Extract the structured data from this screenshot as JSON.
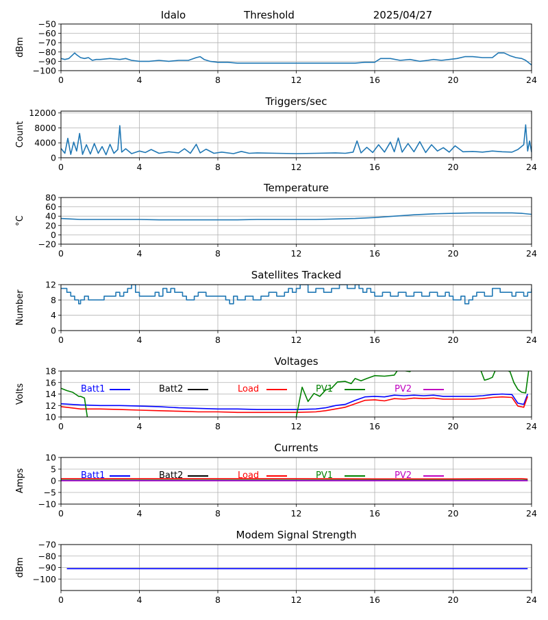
{
  "header": {
    "station": "Idalo",
    "label": "Threshold",
    "date": "2025/04/27"
  },
  "chart_data": [
    {
      "id": "threshold",
      "type": "line",
      "title": "",
      "ylabel": "dBm",
      "xlim": [
        0,
        24
      ],
      "ylim": [
        -100,
        -50
      ],
      "xticks": [
        0,
        4,
        8,
        12,
        16,
        20,
        24
      ],
      "yticks": [
        -100,
        -90,
        -80,
        -70,
        -60,
        -50
      ],
      "grid": true,
      "series": [
        {
          "color": "#1f77b4",
          "x": [
            0,
            0.2,
            0.4,
            0.6,
            0.7,
            0.8,
            1.0,
            1.2,
            1.4,
            1.6,
            1.8,
            2.0,
            2.5,
            3.0,
            3.3,
            3.6,
            4.0,
            4.5,
            5.0,
            5.5,
            6.0,
            6.5,
            6.9,
            7.1,
            7.3,
            7.6,
            8.0,
            8.5,
            9.0,
            10,
            11,
            12,
            13,
            14,
            15,
            15.5,
            16.0,
            16.3,
            16.8,
            17.3,
            17.8,
            18.3,
            18.7,
            19.0,
            19.4,
            19.8,
            20.2,
            20.6,
            21.0,
            21.5,
            22.0,
            22.3,
            22.6,
            22.9,
            23.2,
            23.5,
            23.7,
            24.0
          ],
          "y": [
            -87,
            -88,
            -87,
            -83,
            -81,
            -83,
            -86,
            -87,
            -86,
            -89,
            -88,
            -88,
            -87,
            -88,
            -87,
            -89,
            -90,
            -90,
            -89,
            -90,
            -89,
            -89,
            -86,
            -85,
            -88,
            -90,
            -91,
            -91,
            -92,
            -92,
            -92,
            -92,
            -92,
            -92,
            -92,
            -91,
            -91,
            -87,
            -87,
            -89,
            -88,
            -90,
            -89,
            -88,
            -89,
            -88,
            -87,
            -85,
            -85,
            -86,
            -86,
            -81,
            -81,
            -84,
            -86,
            -87,
            -89,
            -94
          ]
        }
      ]
    },
    {
      "id": "triggers",
      "type": "line",
      "title": "Triggers/sec",
      "ylabel": "Count",
      "xlim": [
        0,
        24
      ],
      "ylim": [
        0,
        12500
      ],
      "xticks": [
        0,
        4,
        8,
        12,
        16,
        20,
        24
      ],
      "yticks": [
        0,
        4000,
        8000,
        12000
      ],
      "grid": true,
      "series": [
        {
          "color": "#1f77b4",
          "x": [
            0,
            0.2,
            0.35,
            0.5,
            0.65,
            0.8,
            0.95,
            1.1,
            1.3,
            1.5,
            1.7,
            1.9,
            2.1,
            2.3,
            2.5,
            2.7,
            2.9,
            3.0,
            3.1,
            3.3,
            3.6,
            4.0,
            4.3,
            4.6,
            5.0,
            5.5,
            6.0,
            6.3,
            6.6,
            6.9,
            7.1,
            7.4,
            7.8,
            8.2,
            8.8,
            9.2,
            9.6,
            10,
            11,
            12,
            13,
            14,
            14.5,
            14.9,
            15.1,
            15.3,
            15.6,
            15.9,
            16.2,
            16.5,
            16.8,
            17.0,
            17.2,
            17.4,
            17.7,
            18.0,
            18.3,
            18.6,
            18.9,
            19.2,
            19.5,
            19.8,
            20.1,
            20.5,
            21.0,
            21.5,
            22.0,
            22.5,
            23.0,
            23.3,
            23.6,
            23.7,
            23.8,
            23.9,
            24.0
          ],
          "y": [
            2500,
            1200,
            5200,
            900,
            4200,
            1800,
            6500,
            900,
            3500,
            1000,
            3800,
            1200,
            3000,
            800,
            3600,
            1200,
            2200,
            8600,
            1500,
            2400,
            1100,
            1800,
            1400,
            2200,
            1200,
            1600,
            1300,
            2400,
            1200,
            3600,
            1300,
            2300,
            1200,
            1500,
            1100,
            1700,
            1200,
            1300,
            1200,
            1100,
            1200,
            1300,
            1200,
            1500,
            4500,
            1300,
            2800,
            1400,
            3500,
            1500,
            4200,
            1600,
            5300,
            1500,
            3800,
            1600,
            4300,
            1400,
            3500,
            1800,
            2700,
            1500,
            3200,
            1600,
            1700,
            1500,
            1800,
            1600,
            1500,
            2200,
            3500,
            8800,
            1800,
            4500,
            1500
          ]
        }
      ]
    },
    {
      "id": "temperature",
      "type": "line",
      "title": "Temperature",
      "ylabel": "°C",
      "xlim": [
        0,
        24
      ],
      "ylim": [
        -20,
        80
      ],
      "xticks": [
        0,
        4,
        8,
        12,
        16,
        20,
        24
      ],
      "yticks": [
        -20,
        0,
        20,
        40,
        60,
        80
      ],
      "grid": true,
      "series": [
        {
          "color": "#1f77b4",
          "x": [
            0,
            0.5,
            1,
            2,
            3,
            4,
            5,
            6,
            7,
            8,
            9,
            10,
            11,
            12,
            13,
            14,
            15,
            16,
            17,
            18,
            19,
            20,
            21,
            22,
            23,
            23.5,
            24
          ],
          "y": [
            35,
            34,
            33,
            33,
            33,
            33,
            32,
            32,
            32,
            32,
            32,
            33,
            33,
            33,
            33,
            34,
            35,
            37,
            40,
            43,
            45,
            46,
            47,
            47,
            47,
            46,
            44
          ]
        }
      ]
    },
    {
      "id": "satellites",
      "type": "line",
      "title": "Satellites Tracked",
      "ylabel": "Number",
      "xlim": [
        0,
        24
      ],
      "ylim": [
        0,
        12
      ],
      "xticks": [
        0,
        4,
        8,
        12,
        16,
        20,
        24
      ],
      "yticks": [
        0,
        4,
        8,
        12
      ],
      "grid": true,
      "series": [
        {
          "color": "#1f77b4",
          "step": true,
          "x": [
            0,
            0.3,
            0.5,
            0.7,
            0.9,
            1.0,
            1.2,
            1.4,
            1.8,
            2.2,
            2.6,
            2.8,
            3.0,
            3.2,
            3.4,
            3.6,
            3.8,
            4.0,
            4.4,
            4.8,
            5.0,
            5.2,
            5.4,
            5.6,
            5.8,
            6.2,
            6.4,
            6.8,
            7.0,
            7.4,
            7.8,
            8.0,
            8.4,
            8.6,
            8.8,
            9.0,
            9.4,
            9.8,
            10.2,
            10.6,
            11.0,
            11.4,
            11.6,
            11.8,
            12.0,
            12.2,
            12.6,
            13.0,
            13.4,
            13.8,
            14.2,
            14.6,
            15.0,
            15.2,
            15.4,
            15.6,
            15.8,
            16.0,
            16.4,
            16.8,
            17.2,
            17.6,
            18.0,
            18.4,
            18.8,
            19.2,
            19.6,
            19.8,
            20.0,
            20.4,
            20.6,
            20.8,
            21.0,
            21.2,
            21.6,
            22.0,
            22.4,
            22.8,
            23.0,
            23.2,
            23.6,
            23.8,
            24.0
          ],
          "y": [
            11,
            10,
            9,
            8,
            7,
            8,
            9,
            8,
            8,
            9,
            9,
            10,
            9,
            10,
            11,
            12,
            10,
            9,
            9,
            10,
            9,
            11,
            10,
            11,
            10,
            9,
            8,
            9,
            10,
            9,
            9,
            9,
            8,
            7,
            9,
            8,
            9,
            8,
            9,
            10,
            9,
            10,
            11,
            10,
            11,
            12,
            10,
            11,
            10,
            11,
            12,
            11,
            12,
            11,
            10,
            11,
            10,
            9,
            10,
            9,
            10,
            9,
            10,
            9,
            10,
            9,
            10,
            9,
            8,
            9,
            7,
            8,
            9,
            10,
            9,
            11,
            10,
            10,
            9,
            10,
            9,
            10,
            11
          ]
        }
      ]
    },
    {
      "id": "voltages",
      "type": "line",
      "title": "Voltages",
      "ylabel": "Volts",
      "xlim": [
        0,
        24
      ],
      "ylim": [
        10,
        18
      ],
      "xticks": [
        0,
        4,
        8,
        12,
        16,
        20,
        24
      ],
      "yticks": [
        10,
        12,
        14,
        16,
        18
      ],
      "grid": true,
      "legend": [
        "Batt1",
        "Batt2",
        "Load",
        "PV1",
        "PV2"
      ],
      "series": [
        {
          "name": "Batt1",
          "color": "#0000ff",
          "x": [
            0,
            0.5,
            1,
            2,
            3,
            4,
            5,
            6,
            7,
            8,
            9,
            10,
            11,
            12,
            13,
            13.5,
            14,
            14.5,
            15,
            15.5,
            16,
            16.5,
            17,
            17.5,
            18,
            18.5,
            19,
            19.5,
            20,
            20.5,
            21,
            21.5,
            22,
            22.5,
            23,
            23.3,
            23.6,
            23.8
          ],
          "y": [
            12.3,
            12.2,
            12.1,
            12.0,
            12.0,
            11.9,
            11.8,
            11.6,
            11.5,
            11.4,
            11.4,
            11.3,
            11.3,
            11.3,
            11.4,
            11.6,
            12.0,
            12.2,
            12.9,
            13.5,
            13.6,
            13.5,
            13.8,
            13.7,
            13.8,
            13.7,
            13.8,
            13.6,
            13.6,
            13.6,
            13.6,
            13.7,
            13.9,
            14.0,
            13.9,
            12.4,
            12.2,
            14.0
          ]
        },
        {
          "name": "Batt2",
          "color": "#000000",
          "x": [],
          "y": []
        },
        {
          "name": "Load",
          "color": "#ff0000",
          "x": [
            0,
            0.5,
            1,
            2,
            3,
            4,
            5,
            6,
            7,
            8,
            9,
            10,
            11,
            12,
            13,
            13.5,
            14,
            14.5,
            15,
            15.5,
            16,
            16.5,
            17,
            17.5,
            18,
            18.5,
            19,
            19.5,
            20,
            20.5,
            21,
            21.5,
            22,
            22.5,
            23,
            23.3,
            23.6,
            23.8
          ],
          "y": [
            11.8,
            11.6,
            11.4,
            11.4,
            11.3,
            11.2,
            11.1,
            11.0,
            10.9,
            10.9,
            10.8,
            10.8,
            10.8,
            10.8,
            10.9,
            11.1,
            11.4,
            11.7,
            12.3,
            12.9,
            13.0,
            12.8,
            13.2,
            13.1,
            13.3,
            13.2,
            13.3,
            13.1,
            13.1,
            13.1,
            13.1,
            13.2,
            13.4,
            13.5,
            13.4,
            11.9,
            11.7,
            13.6
          ]
        },
        {
          "name": "PV1",
          "color": "#008000",
          "x": [
            0,
            0.3,
            0.6,
            0.9,
            1.0,
            1.2,
            1.3,
            1.35,
            12.0,
            12.3,
            12.6,
            12.9,
            13.2,
            13.5,
            13.8,
            14.1,
            14.5,
            14.8,
            15.0,
            15.3,
            15.6,
            16.0,
            16.5,
            17.0,
            17.2,
            17.6,
            17.8,
            18.0,
            21.0,
            21.4,
            21.6,
            21.8,
            22.0,
            22.2,
            22.6,
            22.9,
            23.1,
            23.3,
            23.5,
            23.7,
            23.85
          ],
          "y": [
            15.0,
            14.6,
            14.3,
            13.6,
            13.6,
            13.3,
            11.0,
            9.9,
            10.0,
            15.2,
            12.7,
            14.1,
            13.6,
            14.7,
            15.0,
            16.1,
            16.2,
            15.8,
            16.7,
            16.3,
            16.7,
            17.2,
            17.1,
            17.3,
            18.3,
            18.0,
            17.9,
            18.6,
            19.0,
            18.2,
            16.4,
            16.6,
            16.9,
            18.5,
            18.3,
            17.9,
            16.0,
            14.8,
            14.3,
            14.2,
            18.0
          ]
        },
        {
          "name": "PV2",
          "color": "#bf00bf",
          "x": [],
          "y": []
        }
      ]
    },
    {
      "id": "currents",
      "type": "line",
      "title": "Currents",
      "ylabel": "Amps",
      "xlim": [
        0,
        24
      ],
      "ylim": [
        -10,
        10
      ],
      "xticks": [
        0,
        4,
        8,
        12,
        16,
        20,
        24
      ],
      "yticks": [
        -10,
        -5,
        0,
        5,
        10
      ],
      "grid": true,
      "legend": [
        "Batt1",
        "Batt2",
        "Load",
        "PV1",
        "PV2"
      ],
      "series": [
        {
          "name": "Load",
          "color": "#ff0000",
          "x": [
            0,
            4,
            8,
            12,
            16,
            20,
            23.5,
            23.8
          ],
          "y": [
            0.9,
            0.9,
            0.9,
            0.9,
            0.8,
            0.8,
            0.9,
            0.7
          ]
        },
        {
          "name": "PV1",
          "color": "#008000",
          "x": [
            0,
            4,
            8,
            12,
            16,
            20,
            23.8
          ],
          "y": [
            0.3,
            0.3,
            0.3,
            0.3,
            0.3,
            0.3,
            0.3
          ]
        },
        {
          "name": "Batt1",
          "color": "#0000ff",
          "x": [
            0,
            4,
            8,
            12,
            16,
            20,
            23.8
          ],
          "y": [
            0.1,
            0.1,
            0.1,
            0.1,
            0.1,
            0.1,
            0.1
          ]
        },
        {
          "name": "PV2",
          "color": "#bf00bf",
          "x": [
            0,
            4,
            8,
            12,
            16,
            20,
            23.8
          ],
          "y": [
            0.0,
            0.0,
            0.0,
            0.0,
            0.0,
            0.0,
            0.0
          ]
        },
        {
          "name": "Batt2",
          "color": "#000000",
          "x": [],
          "y": []
        }
      ]
    },
    {
      "id": "modem",
      "type": "line",
      "title": "Modem Signal Strength",
      "ylabel": "dBm",
      "xlim": [
        0,
        24
      ],
      "ylim": [
        -110,
        -70
      ],
      "xticks": [
        0,
        4,
        8,
        12,
        16,
        20,
        24
      ],
      "yticks": [
        -100,
        -90,
        -80,
        -70
      ],
      "grid": true,
      "series": [
        {
          "color": "#0000ff",
          "x": [
            0.3,
            23.8
          ],
          "y": [
            -91,
            -91
          ]
        }
      ]
    }
  ]
}
